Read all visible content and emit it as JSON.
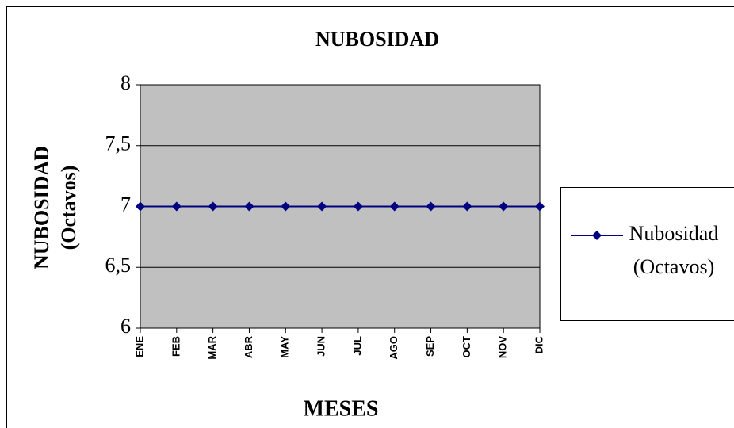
{
  "chart_data": {
    "type": "line",
    "title": "NUBOSIDAD",
    "x_label": "MESES",
    "y_label": "NUBOSIDAD (Octavos)",
    "categories": [
      "ENE",
      "FEB",
      "MAR",
      "ABR",
      "MAY",
      "JUN",
      "JUL",
      "AGO",
      "SEP",
      "OCT",
      "NOV",
      "DIC"
    ],
    "series": [
      {
        "name": "Nubosidad (Octavos)",
        "color": "#000080",
        "values": [
          7,
          7,
          7,
          7,
          7,
          7,
          7,
          7,
          7,
          7,
          7,
          7
        ]
      }
    ],
    "ylim": [
      6,
      8
    ],
    "yticks": [
      6,
      {
        "value": 6.5,
        "label": "6,5"
      },
      7,
      {
        "value": 7.5,
        "label": "7,5"
      },
      8
    ],
    "grid": true,
    "legend": "right",
    "plot_background": "#c0c0c0"
  }
}
